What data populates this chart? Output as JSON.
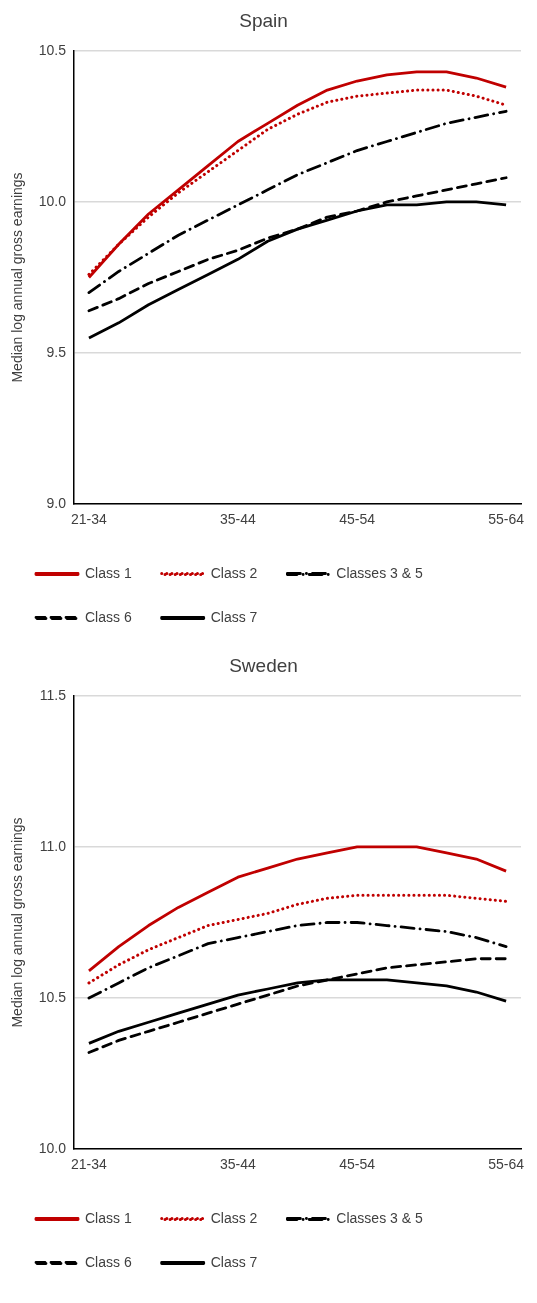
{
  "chart_data": [
    {
      "type": "line",
      "title": "Spain",
      "ylabel": "Median log annual gross earnings",
      "categories": [
        "21-34",
        null,
        null,
        null,
        null,
        "35-44",
        null,
        null,
        null,
        "45-54",
        null,
        null,
        null,
        null,
        "55-64"
      ],
      "ylim": [
        9,
        10.5
      ],
      "yticks": [
        {
          "value": 9,
          "label": "9.0"
        },
        {
          "value": 9.5,
          "label": "9.5"
        },
        {
          "value": 10,
          "label": "10.0"
        },
        {
          "value": 10.5,
          "label": "10.5"
        }
      ],
      "grid": "y",
      "legend": "bottom left",
      "series": [
        {
          "name": "Class 1",
          "color": "#c00000",
          "line_style": "solid",
          "values": [
            9.75,
            9.86,
            9.96,
            10.04,
            10.12,
            10.2,
            10.26,
            10.32,
            10.37,
            10.4,
            10.42,
            10.43,
            10.43,
            10.41,
            10.38
          ]
        },
        {
          "name": "Class 2",
          "color": "#c00000",
          "line_style": "dotted",
          "values": [
            9.76,
            9.86,
            9.95,
            10.03,
            10.1,
            10.17,
            10.24,
            10.29,
            10.33,
            10.35,
            10.36,
            10.37,
            10.37,
            10.35,
            10.32
          ]
        },
        {
          "name": "Classes 3 & 5",
          "color": "#000000",
          "line_style": "dashdot",
          "values": [
            9.7,
            9.77,
            9.83,
            9.89,
            9.94,
            9.99,
            10.04,
            10.09,
            10.13,
            10.17,
            10.2,
            10.23,
            10.26,
            10.28,
            10.3
          ]
        },
        {
          "name": "Class 6",
          "color": "#000000",
          "line_style": "dashed",
          "values": [
            9.64,
            9.68,
            9.73,
            9.77,
            9.81,
            9.84,
            9.88,
            9.91,
            9.95,
            9.97,
            10,
            10.02,
            10.04,
            10.06,
            10.08
          ]
        },
        {
          "name": "Class 7",
          "color": "#000000",
          "line_style": "solid",
          "values": [
            9.55,
            9.6,
            9.66,
            9.71,
            9.76,
            9.81,
            9.87,
            9.91,
            9.94,
            9.97,
            9.99,
            9.99,
            10,
            10,
            9.99
          ]
        }
      ]
    },
    {
      "type": "line",
      "title": "Sweden",
      "ylabel": "Median log annual gross earnings",
      "categories": [
        "21-34",
        null,
        null,
        null,
        null,
        "35-44",
        null,
        null,
        null,
        "45-54",
        null,
        null,
        null,
        null,
        "55-64"
      ],
      "ylim": [
        10,
        11.5
      ],
      "yticks": [
        {
          "value": 10,
          "label": "10.0"
        },
        {
          "value": 10.5,
          "label": "10.5"
        },
        {
          "value": 11,
          "label": "11.0"
        },
        {
          "value": 11.5,
          "label": "11.5"
        }
      ],
      "grid": "y",
      "legend": "bottom left",
      "series": [
        {
          "name": "Class 1",
          "color": "#c00000",
          "line_style": "solid",
          "values": [
            10.59,
            10.67,
            10.74,
            10.8,
            10.85,
            10.9,
            10.93,
            10.96,
            10.98,
            11,
            11,
            11,
            10.98,
            10.96,
            10.92
          ]
        },
        {
          "name": "Class 2",
          "color": "#c00000",
          "line_style": "dotted",
          "values": [
            10.55,
            10.61,
            10.66,
            10.7,
            10.74,
            10.76,
            10.78,
            10.81,
            10.83,
            10.84,
            10.84,
            10.84,
            10.84,
            10.83,
            10.82
          ]
        },
        {
          "name": "Classes 3 & 5",
          "color": "#000000",
          "line_style": "dashdot",
          "values": [
            10.5,
            10.55,
            10.6,
            10.64,
            10.68,
            10.7,
            10.72,
            10.74,
            10.75,
            10.75,
            10.74,
            10.73,
            10.72,
            10.7,
            10.67
          ]
        },
        {
          "name": "Class 6",
          "color": "#000000",
          "line_style": "dashed",
          "values": [
            10.32,
            10.36,
            10.39,
            10.42,
            10.45,
            10.48,
            10.51,
            10.54,
            10.56,
            10.58,
            10.6,
            10.61,
            10.62,
            10.63,
            10.63
          ]
        },
        {
          "name": "Class 7",
          "color": "#000000",
          "line_style": "solid",
          "values": [
            10.35,
            10.39,
            10.42,
            10.45,
            10.48,
            10.51,
            10.53,
            10.55,
            10.56,
            10.56,
            10.56,
            10.55,
            10.54,
            10.52,
            10.49
          ]
        }
      ]
    }
  ]
}
